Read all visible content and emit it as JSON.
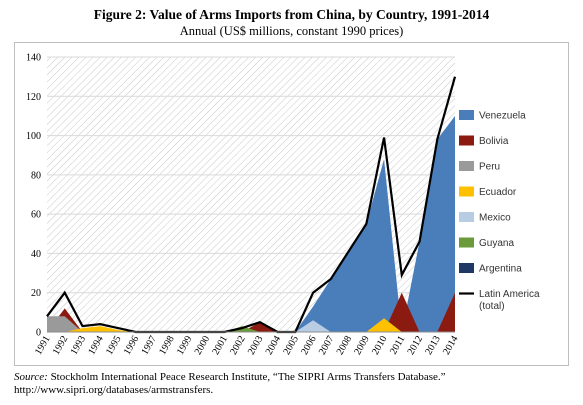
{
  "header": {
    "title": "Figure 2: Value of Arms Imports from China, by Country, 1991-2014",
    "subtitle": "Annual (US$ millions, constant 1990 prices)"
  },
  "footer": {
    "source_label": "Source:",
    "source_text": " Stockholm International Peace Research Institute, “The SIPRI Arms Transfers Database.”",
    "source_url": "http://www.sipri.org/databases/armstransfers."
  },
  "colors": {
    "Venezuela": "#4a7ebb",
    "Bolivia": "#8b1a10",
    "Peru": "#9a9a9a",
    "Ecuador": "#ffc000",
    "Mexico": "#b8cce4",
    "Guyana": "#6a9a3a",
    "Argentina": "#1f3864",
    "Latin America (total)": "#000000",
    "grid": "#d9d9d9",
    "hatch": "#c8c8c8"
  },
  "chart_data": {
    "type": "area",
    "title": "Figure 2: Value of Arms Imports from China, by Country, 1991-2014",
    "subtitle": "Annual (US$ millions, constant 1990 prices)",
    "ylim": [
      0,
      140
    ],
    "yticks": [
      0,
      20,
      40,
      60,
      80,
      100,
      120,
      140
    ],
    "x": [
      "1991",
      "1992",
      "1993",
      "1994",
      "1995",
      "1996",
      "1997",
      "1998",
      "1999",
      "2000",
      "2001",
      "2002",
      "2003",
      "2004",
      "2005",
      "2006",
      "2007",
      "2008",
      "2009",
      "2010",
      "2011",
      "2012",
      "2013",
      "2014"
    ],
    "series": [
      {
        "name": "Venezuela",
        "values": [
          0,
          0,
          0,
          0,
          0,
          0,
          0,
          0,
          0,
          0,
          0,
          0,
          0,
          0,
          0,
          13,
          27,
          41,
          55,
          88,
          0,
          46,
          98,
          110
        ]
      },
      {
        "name": "Bolivia",
        "values": [
          0,
          12,
          0,
          0,
          0,
          0,
          0,
          0,
          0,
          0,
          0,
          0,
          5,
          0,
          0,
          0,
          0,
          0,
          0,
          0,
          20,
          0,
          0,
          20
        ]
      },
      {
        "name": "Peru",
        "values": [
          8,
          8,
          0,
          0,
          0,
          0,
          0,
          0,
          0,
          0,
          0,
          0,
          0,
          0,
          0,
          0,
          0,
          0,
          0,
          0,
          0,
          0,
          0,
          0
        ]
      },
      {
        "name": "Ecuador",
        "values": [
          0,
          0,
          2,
          3,
          1,
          0,
          0,
          0,
          0,
          0,
          0,
          0,
          0,
          0,
          0,
          0,
          0,
          0,
          0,
          7,
          0,
          0,
          0,
          0
        ]
      },
      {
        "name": "Mexico",
        "values": [
          0,
          0,
          0,
          0,
          0,
          0,
          0,
          0,
          0,
          0,
          0,
          0,
          0,
          0,
          0,
          6,
          0,
          0,
          0,
          0,
          0,
          0,
          0,
          0
        ]
      },
      {
        "name": "Guyana",
        "values": [
          0,
          0,
          0,
          0,
          0,
          0,
          0,
          0,
          0,
          0,
          0,
          3,
          0,
          0,
          0,
          0,
          0,
          0,
          0,
          0,
          0,
          0,
          0,
          0
        ]
      },
      {
        "name": "Argentina",
        "values": [
          0,
          0,
          0,
          0,
          0,
          0,
          0,
          0,
          0,
          0,
          0,
          0,
          0,
          0,
          0,
          0,
          0,
          0,
          0,
          0,
          0,
          0,
          0,
          0
        ]
      },
      {
        "name": "Latin America (total)",
        "type": "line",
        "values": [
          8,
          20,
          3,
          4,
          2,
          0,
          0,
          0,
          0,
          0,
          0,
          2,
          5,
          0,
          0,
          20,
          27,
          41,
          55,
          99,
          29,
          46,
          98,
          130
        ]
      }
    ],
    "legend": [
      {
        "name": "Venezuela",
        "label": "Venezuela",
        "kind": "area"
      },
      {
        "name": "Bolivia",
        "label": "Bolivia",
        "kind": "area"
      },
      {
        "name": "Peru",
        "label": "Peru",
        "kind": "area"
      },
      {
        "name": "Ecuador",
        "label": "Ecuador",
        "kind": "area"
      },
      {
        "name": "Mexico",
        "label": "Mexico",
        "kind": "area"
      },
      {
        "name": "Guyana",
        "label": "Guyana",
        "kind": "area"
      },
      {
        "name": "Argentina",
        "label": "Argentina",
        "kind": "area"
      },
      {
        "name": "Latin America (total)",
        "label": "Latin America\n(total)",
        "kind": "line"
      }
    ],
    "legend_position": "right",
    "grid": true,
    "plot_background": "diagonal-hatch"
  }
}
